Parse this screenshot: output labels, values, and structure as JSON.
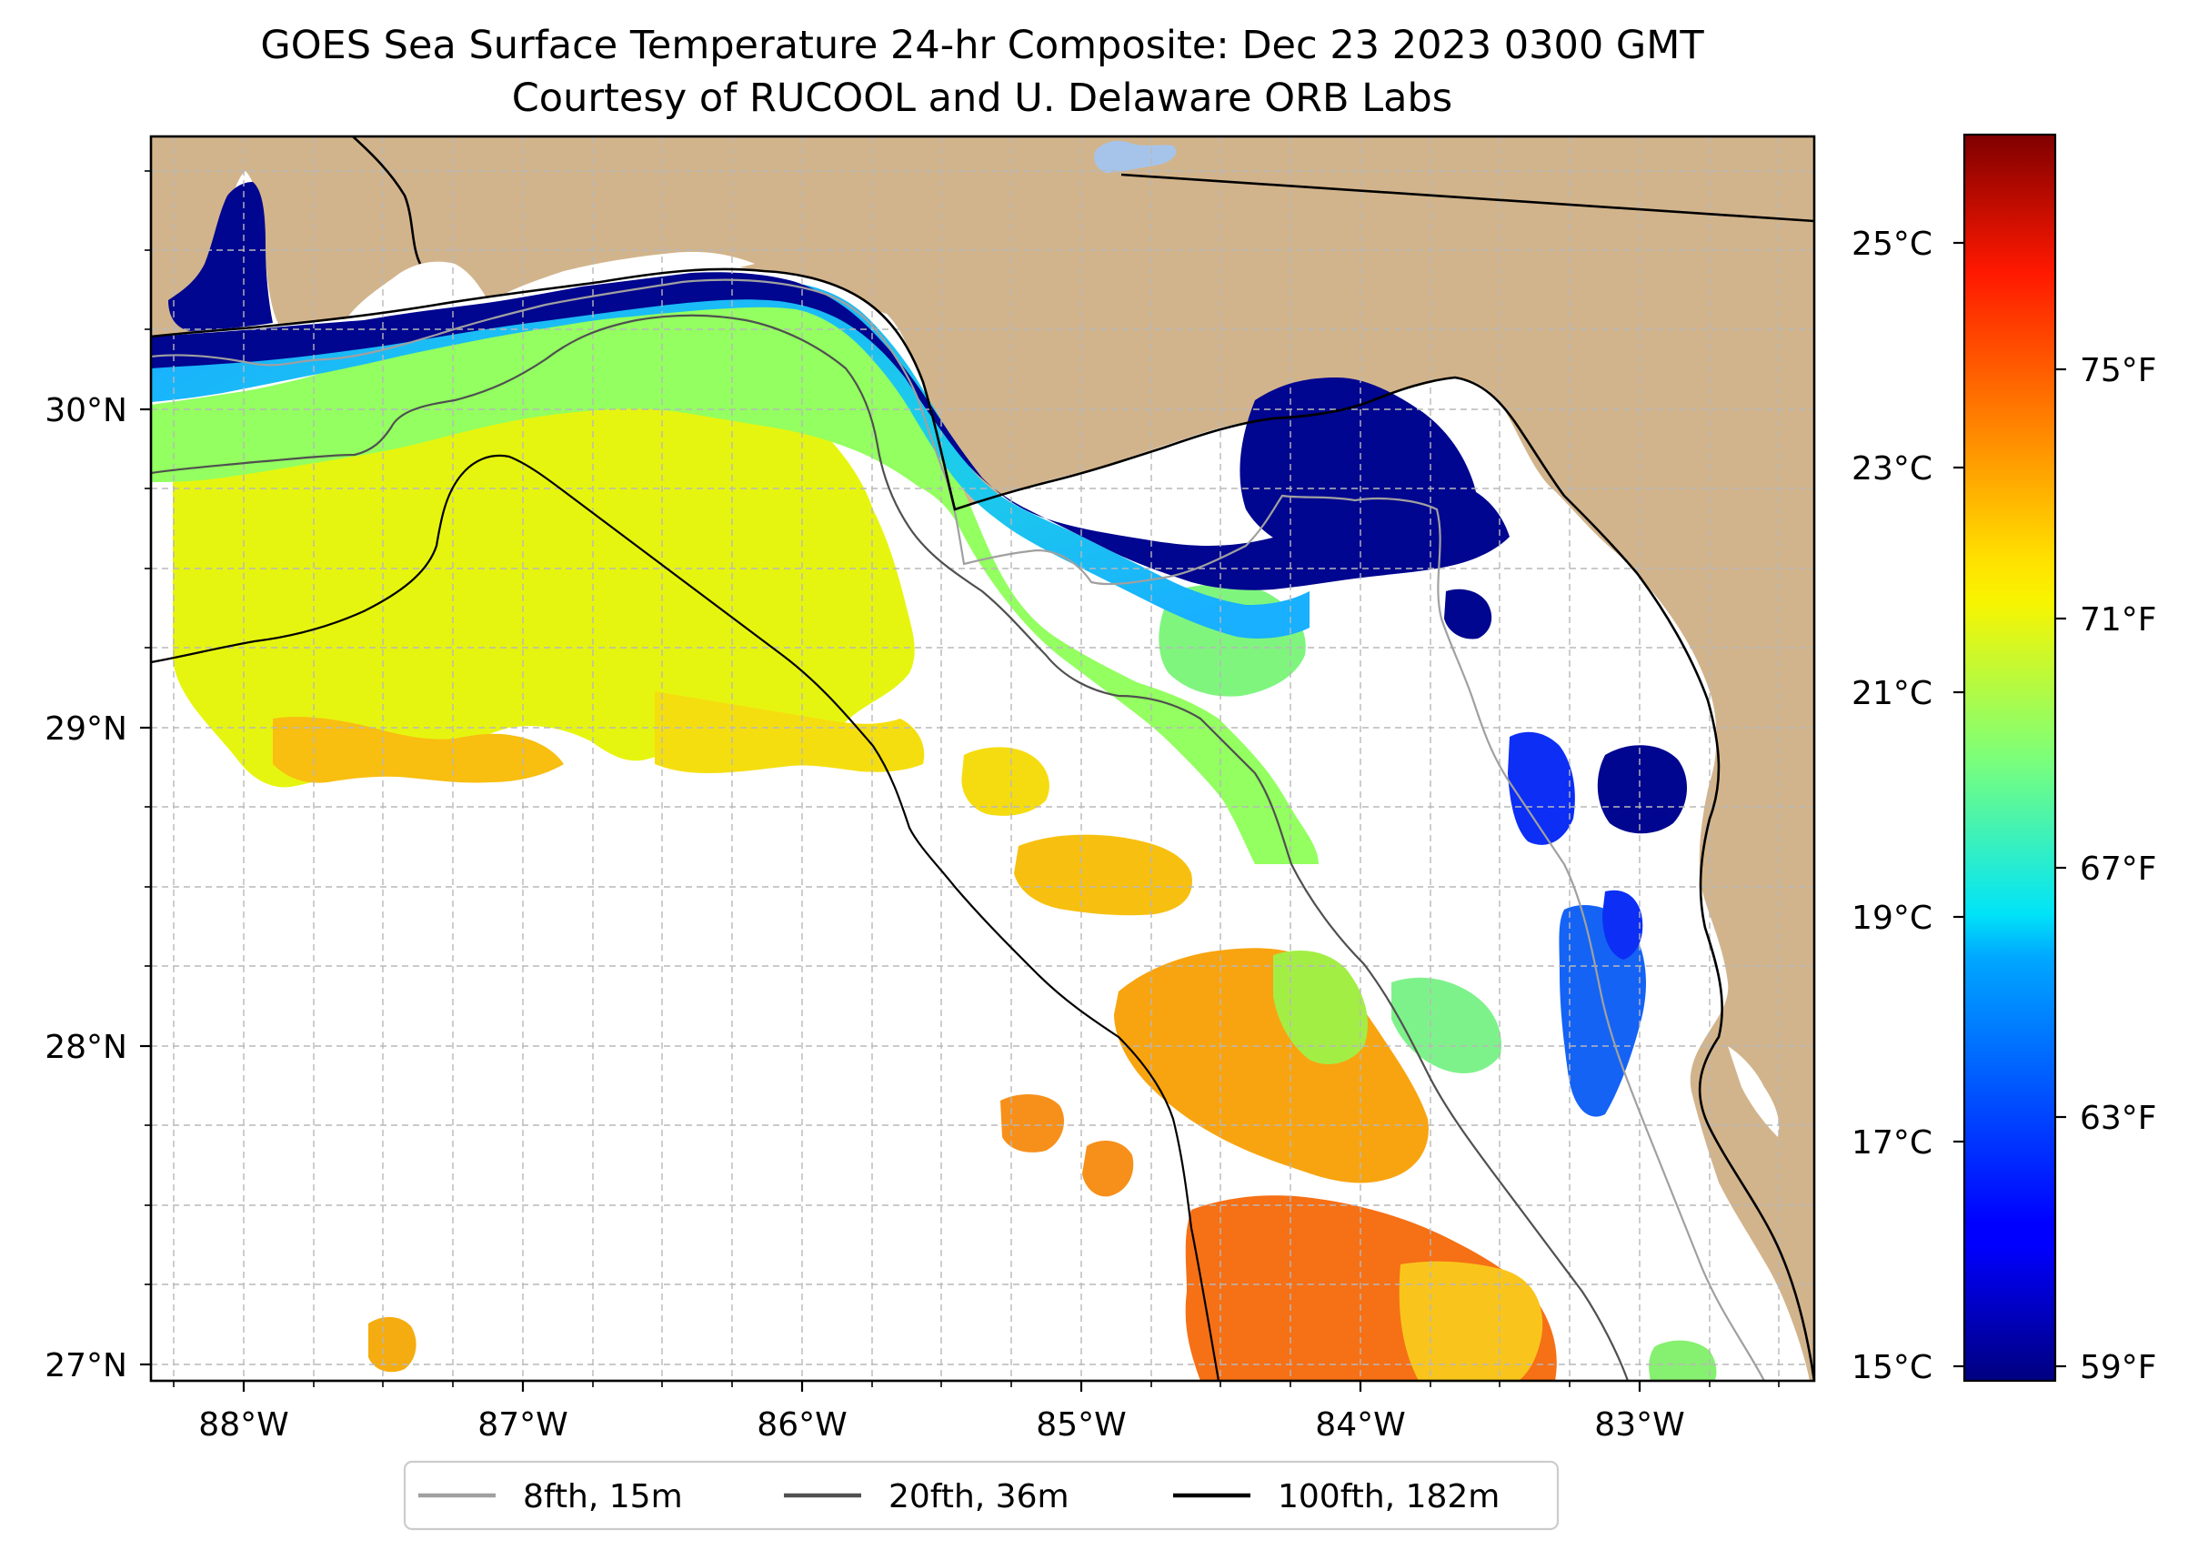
{
  "title": {
    "line1": "GOES Sea Surface Temperature 24-hr Composite: Dec 23 2023 0300 GMT",
    "line2": "Courtesy of RUCOOL and U. Delaware ORB Labs"
  },
  "map": {
    "extent": {
      "lon_min": -88.33,
      "lon_max": -82.36,
      "lat_min": 26.93,
      "lat_max": 30.83
    },
    "lon_ticks": [
      {
        "value": -88,
        "label": "88°W"
      },
      {
        "value": -87,
        "label": "87°W"
      },
      {
        "value": -86,
        "label": "86°W"
      },
      {
        "value": -85,
        "label": "85°W"
      },
      {
        "value": -84,
        "label": "84°W"
      },
      {
        "value": -83,
        "label": "83°W"
      }
    ],
    "lat_ticks": [
      {
        "value": 30,
        "label": "30°N"
      },
      {
        "value": 29,
        "label": "29°N"
      },
      {
        "value": 28,
        "label": "28°N"
      },
      {
        "value": 27,
        "label": "27°N"
      }
    ],
    "gridlines": true,
    "colors": {
      "land": "#d2b48c",
      "water_no_data": "#ffffff",
      "inland_lake": "#a6c4ea",
      "isobath_8fth": "#a0a0a0",
      "isobath_20fth": "#505050",
      "isobath_100fth": "#000000",
      "coastline": "#000000"
    }
  },
  "colorbar": {
    "celsius_ticks": [
      {
        "value": 25,
        "label": "25°C"
      },
      {
        "value": 23,
        "label": "23°C"
      },
      {
        "value": 21,
        "label": "21°C"
      },
      {
        "value": 19,
        "label": "19°C"
      },
      {
        "value": 17,
        "label": "17°C"
      },
      {
        "value": 15,
        "label": "15°C"
      }
    ],
    "fahrenheit_ticks": [
      {
        "value": 75,
        "label": "75°F"
      },
      {
        "value": 71,
        "label": "71°F"
      },
      {
        "value": 67,
        "label": "67°F"
      },
      {
        "value": 63,
        "label": "63°F"
      },
      {
        "value": 59,
        "label": "59°F"
      }
    ],
    "range_f": [
      59,
      79
    ],
    "colormap": "jet"
  },
  "legend": {
    "items": [
      {
        "label": "8fth, 15m",
        "color": "#a0a0a0"
      },
      {
        "label": "20fth, 36m",
        "color": "#505050"
      },
      {
        "label": "100fth, 182m",
        "color": "#000000"
      }
    ]
  }
}
